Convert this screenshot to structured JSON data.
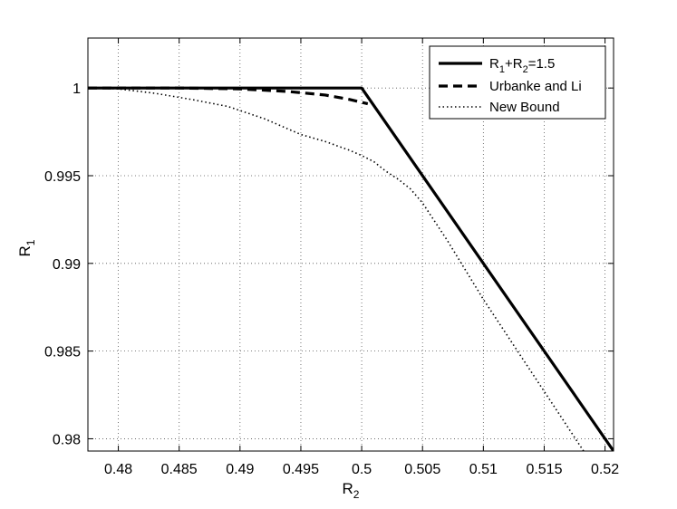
{
  "chart_data": {
    "type": "line",
    "xlabel": "R",
    "xlabel_sub": "2",
    "ylabel": "R",
    "ylabel_sub": "1",
    "xlim": [
      0.4775,
      0.5207
    ],
    "ylim": [
      0.9793,
      1.00285
    ],
    "grid": true,
    "legend_position": "top-right",
    "x_ticks": [
      0.48,
      0.485,
      0.49,
      0.495,
      0.5,
      0.505,
      0.51,
      0.515,
      0.52
    ],
    "x_tick_labels": [
      "0.48",
      "0.485",
      "0.49",
      "0.495",
      "0.5",
      "0.505",
      "0.51",
      "0.515",
      "0.52"
    ],
    "y_ticks": [
      0.98,
      0.985,
      0.99,
      0.995,
      1.0
    ],
    "y_tick_labels": [
      "0.98",
      "0.985",
      "0.99",
      "0.995",
      "1"
    ],
    "series": [
      {
        "legend": {
          "parts": [
            [
              "R",
              ""
            ],
            [
              "1",
              "sub"
            ],
            [
              "+R",
              ""
            ],
            [
              "2",
              "sub"
            ],
            [
              "=1.5",
              ""
            ]
          ]
        },
        "style": "solid",
        "color": "#000000",
        "x": [
          0.4775,
          0.5,
          0.5207
        ],
        "y": [
          1.0,
          1.0,
          0.9793
        ]
      },
      {
        "name": "Urbanke and Li",
        "style": "dashed",
        "color": "#000000",
        "x": [
          0.4775,
          0.485,
          0.49,
          0.494,
          0.497,
          0.499,
          0.5005
        ],
        "y": [
          1.0,
          1.0,
          0.99995,
          0.9998,
          0.9996,
          0.99935,
          0.9991
        ]
      },
      {
        "name": "New Bound",
        "style": "dotted",
        "color": "#000000",
        "x": [
          0.4775,
          0.48,
          0.483,
          0.486,
          0.489,
          0.492,
          0.495,
          0.497,
          0.499,
          0.5,
          0.501,
          0.502,
          0.503,
          0.504,
          0.505,
          0.507,
          0.51,
          0.513,
          0.516,
          0.519,
          0.5207
        ],
        "y": [
          1.0,
          0.99995,
          0.9997,
          0.99935,
          0.99895,
          0.99825,
          0.99735,
          0.99695,
          0.99645,
          0.99615,
          0.9958,
          0.99525,
          0.9948,
          0.99425,
          0.99345,
          0.99135,
          0.98795,
          0.9848,
          0.98165,
          0.9785,
          0.9767
        ]
      }
    ]
  }
}
